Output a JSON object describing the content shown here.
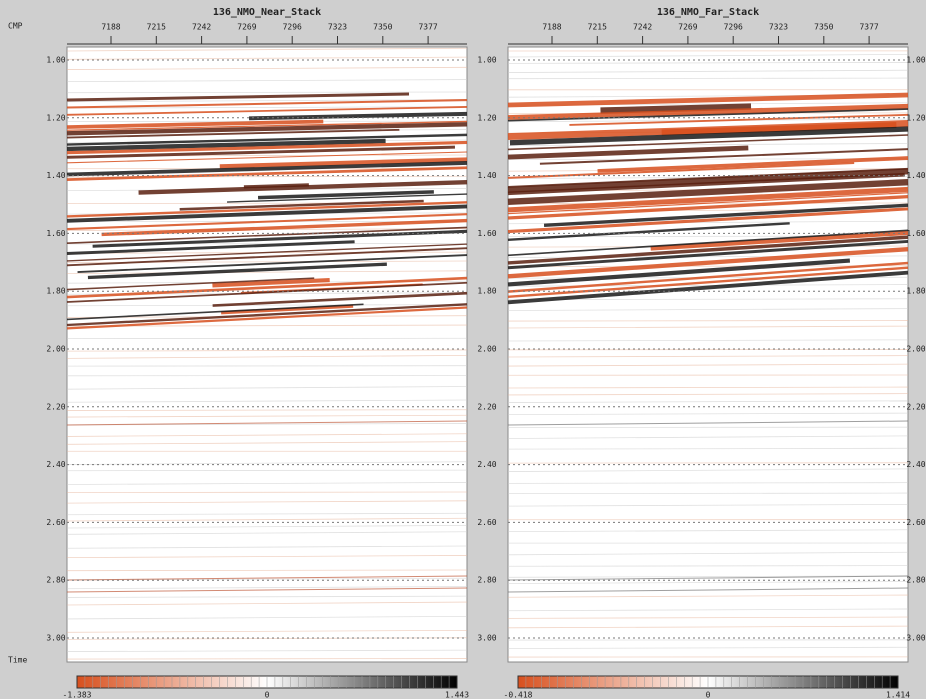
{
  "axis_labels": {
    "cmp": "CMP",
    "time": "Time"
  },
  "time_labels": [
    "1.00",
    "1.20",
    "1.40",
    "1.60",
    "1.80",
    "2.00",
    "2.20",
    "2.40",
    "2.60",
    "2.80",
    "3.00"
  ],
  "panels": [
    {
      "title": "136_NMO_Near_Stack",
      "cmp_labels": [
        "7188",
        "7215",
        "7242",
        "7269",
        "7296",
        "7323",
        "7350",
        "7377"
      ],
      "colorbar_labels": [
        "-1.383",
        "0",
        "1.443"
      ]
    },
    {
      "title": "136_NMO_Far_Stack",
      "cmp_labels": [
        "7188",
        "7215",
        "7242",
        "7269",
        "7296",
        "7323",
        "7350",
        "7377"
      ],
      "colorbar_labels": [
        "-0.418",
        "0",
        "1.414"
      ]
    }
  ]
}
